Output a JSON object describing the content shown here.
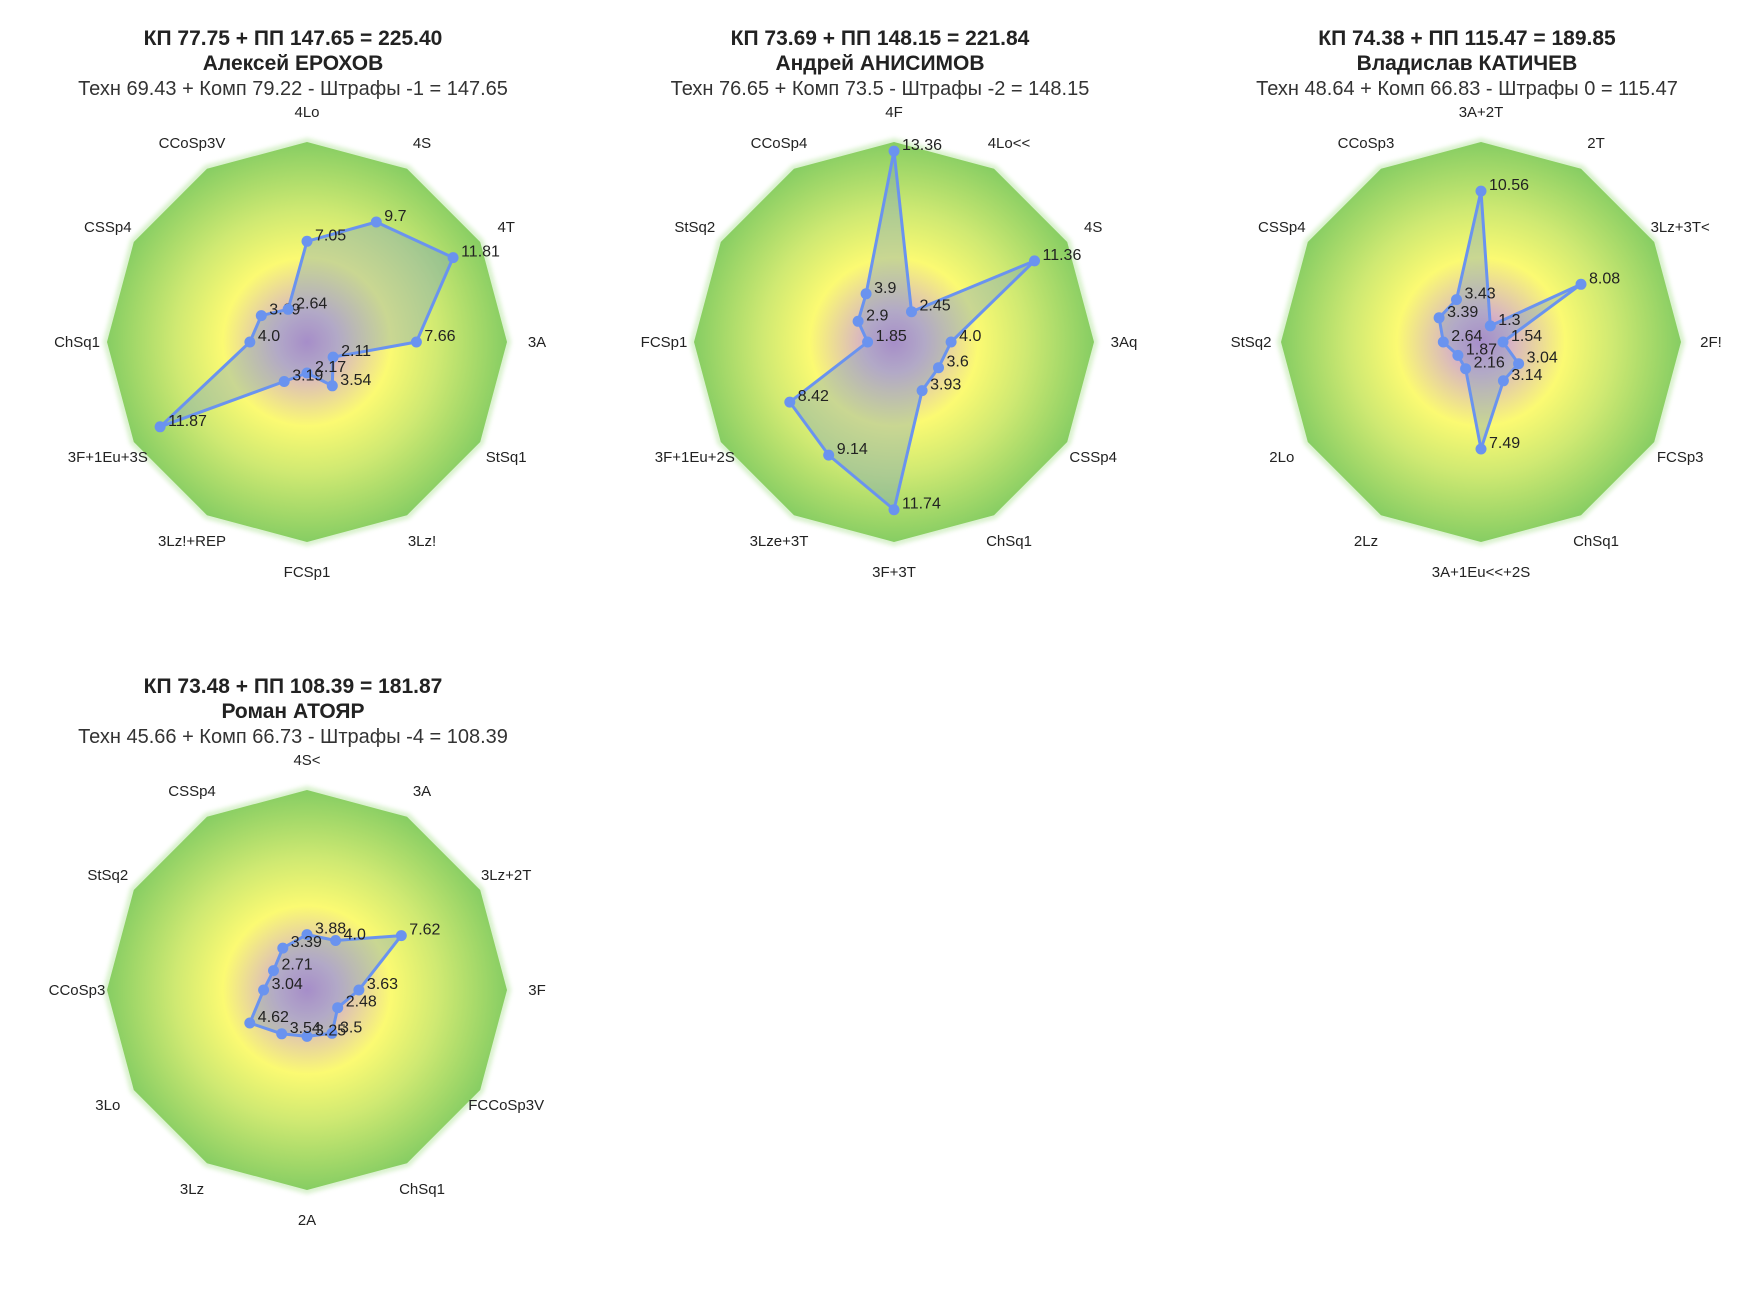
{
  "chart_data": [
    {
      "type": "radar",
      "title": "КП 77.75 + ПП 147.65 = 225.40",
      "name": "Алексей ЕРОХОВ",
      "subtitle": "Техн 69.43 + Комп 79.22 - Штрафы -1 = 147.65",
      "rmax": 14,
      "categories": [
        "4Lo",
        "4S",
        "4T",
        "3A",
        "StSq1",
        "3Lz!",
        "FCSp1",
        "3Lz!+REP",
        "3F+1Eu+3S",
        "ChSq1",
        "CSSp4",
        "CCoSp3V"
      ],
      "values": [
        7.05,
        9.7,
        11.81,
        7.66,
        2.11,
        3.54,
        2.17,
        3.19,
        11.87,
        4.0,
        3.69,
        2.64
      ],
      "value_labels": [
        "7.05",
        "9.7",
        "11.81",
        "7.66",
        "2.11",
        "3.54",
        "2.17",
        "3.19",
        "11.87",
        "4.0",
        "3.69",
        "2.64"
      ]
    },
    {
      "type": "radar",
      "title": "КП 73.69 + ПП 148.15 = 221.84",
      "name": "Андрей АНИСИМОВ",
      "subtitle": "Техн 76.65 + Комп 73.5 - Штрафы -2 = 148.15",
      "rmax": 14,
      "categories": [
        "4F",
        "4Lo<<",
        "4S",
        "3Aq",
        "CSSp4",
        "ChSq1",
        "3F+3T",
        "3Lze+3T",
        "3F+1Eu+2S",
        "FCSp1",
        "StSq2",
        "CCoSp4"
      ],
      "values": [
        13.36,
        2.45,
        11.36,
        4.0,
        3.6,
        3.93,
        11.74,
        9.14,
        8.42,
        1.85,
        2.9,
        3.9
      ],
      "value_labels": [
        "13.36",
        "2.45",
        "11.36",
        "4.0",
        "3.6",
        "3.93",
        "11.74",
        "9.14",
        "8.42",
        "1.85",
        "2.9",
        "3.9"
      ]
    },
    {
      "type": "radar",
      "title": "КП 74.38 + ПП 115.47 = 189.85",
      "name": "Владислав КАТИЧЕВ",
      "subtitle": "Техн 48.64 + Комп 66.83 - Штрафы 0 = 115.47",
      "rmax": 14,
      "categories": [
        "3A+2T",
        "2T",
        "3Lz+3T<",
        "2F!",
        "FCSp3",
        "ChSq1",
        "3A+1Eu<<+2S",
        "2Lz",
        "2Lo",
        "StSq2",
        "CSSp4",
        "CCoSp3"
      ],
      "values": [
        10.56,
        1.3,
        8.08,
        1.54,
        3.04,
        3.14,
        7.49,
        2.16,
        1.87,
        2.64,
        3.39,
        3.43
      ],
      "value_labels": [
        "10.56",
        "1.3",
        "8.08",
        "1.54",
        "3.04",
        "3.14",
        "7.49",
        "2.16",
        "1.87",
        "2.64",
        "3.39",
        "3.43"
      ]
    },
    {
      "type": "radar",
      "title": "КП 73.48 + ПП 108.39 = 181.87",
      "name": "Роман АТОЯР",
      "subtitle": "Техн 45.66 + Комп 66.73 - Штрафы -4 = 108.39",
      "rmax": 14,
      "categories": [
        "4S<",
        "3A",
        "3Lz+2T",
        "3F",
        "FCCoSp3V",
        "ChSq1",
        "2A",
        "3Lz",
        "3Lo",
        "CCoSp3",
        "StSq2",
        "CSSp4"
      ],
      "values": [
        3.88,
        4.0,
        7.62,
        3.63,
        2.48,
        3.5,
        3.25,
        3.54,
        4.62,
        3.04,
        2.71,
        3.39
      ],
      "value_labels": [
        "3.88",
        "4.0",
        "7.62",
        "3.63",
        "2.48",
        "3.5",
        "3.25",
        "3.54",
        "4.62",
        "3.04",
        "2.71",
        "3.39"
      ]
    }
  ]
}
